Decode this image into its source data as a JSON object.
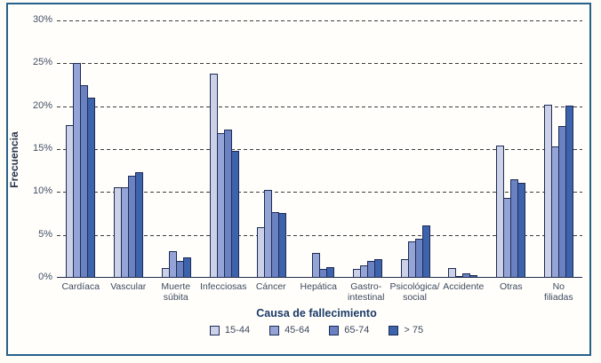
{
  "figure": {
    "y_axis_label": "Frecuencia",
    "x_axis_label": "Causa de fallecimiento"
  },
  "chart_data": {
    "type": "bar",
    "title": "",
    "xlabel": "Causa de fallecimiento",
    "ylabel": "Frecuencia",
    "ylim": [
      0,
      30
    ],
    "yticks": [
      0,
      5,
      10,
      15,
      20,
      25,
      30
    ],
    "ytick_suffix": "%",
    "grid": "horizontal-dashed",
    "legend_position": "bottom-center",
    "categories": [
      "Cardíaca",
      "Vascular",
      "Muerte\nsúbita",
      "Infecciosas",
      "Cáncer",
      "Hepática",
      "Gastro-\nintestinal",
      "Psicológica/\nsocial",
      "Accidente",
      "Otras",
      "No\nfiliadas"
    ],
    "series": [
      {
        "name": "15-44",
        "color": "#cdd1e8",
        "values": [
          17.8,
          10.6,
          1.1,
          23.8,
          5.9,
          0,
          1.0,
          2.2,
          1.1,
          15.4,
          20.2
        ]
      },
      {
        "name": "45-64",
        "color": "#95a4d6",
        "values": [
          25.0,
          10.5,
          3.1,
          16.9,
          10.2,
          2.9,
          1.4,
          4.2,
          0.2,
          9.3,
          15.3
        ]
      },
      {
        "name": "65-74",
        "color": "#6a82c2",
        "values": [
          22.4,
          11.9,
          2.0,
          17.3,
          7.7,
          1.0,
          2.0,
          4.6,
          0.5,
          11.5,
          17.7
        ]
      },
      {
        "name": "> 75",
        "color": "#3c63ac",
        "values": [
          21.0,
          12.3,
          2.4,
          14.8,
          7.5,
          1.2,
          2.2,
          6.1,
          0.3,
          11.1,
          20.1
        ]
      }
    ],
    "colors": {
      "bar_border": "#1d2c55",
      "frame_border": "#26618b",
      "axis_line": "#202c4e",
      "grid_line": "#3c3c3c",
      "tick_text": "#434f63",
      "label_text": "#3e4a5e",
      "title_text": "#1c3a66"
    }
  }
}
